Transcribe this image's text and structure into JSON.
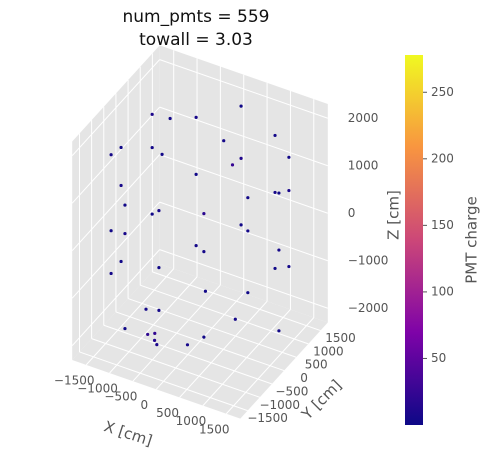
{
  "chart_data": {
    "type": "scatter3d",
    "title": "num_pmts = 559",
    "subtitle": "towall = 3.03",
    "x_label": "X [cm]",
    "y_label": "Y [cm]",
    "z_label": "Z [cm]",
    "colorbar_label": "PMT charge",
    "colormap": "plasma",
    "clim": [
      0,
      278
    ],
    "cticks": [
      50,
      100,
      150,
      200,
      250
    ],
    "xlim": [
      -1800,
      1800
    ],
    "ylim": [
      -1800,
      1800
    ],
    "zlim": [
      -2300,
      2300
    ],
    "xticks": [
      {
        "value": -1500,
        "label": "−1500"
      },
      {
        "value": -1000,
        "label": "−1000"
      },
      {
        "value": -500,
        "label": "−500"
      },
      0,
      500,
      1000,
      1500
    ],
    "yticks": [
      {
        "value": -1500,
        "label": "−1500"
      },
      {
        "value": -1000,
        "label": "−1000"
      },
      {
        "value": -500,
        "label": "−500"
      },
      0,
      500,
      1000,
      1500
    ],
    "zticks": [
      {
        "value": -2000,
        "label": "−2000"
      },
      {
        "value": -1000,
        "label": "−1000"
      },
      0,
      1000,
      2000
    ],
    "grid": true,
    "points": {
      "x": [
        1690,
        1690,
        1690,
        1464,
        1464,
        1464,
        845,
        845,
        845,
        0,
        0,
        0,
        -845,
        -845,
        -845,
        -1464,
        -1464,
        -1464,
        -1690,
        -1690,
        -1690,
        -1464,
        -1464,
        -1464,
        -845,
        -845,
        -845,
        0,
        0,
        0,
        845,
        845,
        845,
        1464,
        1464,
        1464,
        300,
        -500,
        800,
        -900,
        200,
        -300,
        600,
        -1000,
        -600,
        -400,
        -500,
        -300
      ],
      "y": [
        0,
        0,
        0,
        845,
        845,
        845,
        1464,
        1464,
        1464,
        1690,
        1690,
        1690,
        1464,
        1464,
        1464,
        845,
        845,
        845,
        0,
        0,
        0,
        -845,
        -845,
        -845,
        -1464,
        -1464,
        -1464,
        -1690,
        -1690,
        -1690,
        -1464,
        -1464,
        -1464,
        -845,
        -845,
        -845,
        400,
        -600,
        -200,
        500,
        -900,
        800,
        300,
        -300,
        -1000,
        -1100,
        -900,
        -1200
      ],
      "z": [
        -1500,
        200,
        1400,
        -700,
        900,
        1600,
        -1300,
        300,
        1500,
        -800,
        600,
        1700,
        -1400,
        100,
        1300,
        -600,
        800,
        1500,
        -1200,
        400,
        1200,
        -900,
        0,
        1600,
        -1500,
        500,
        1100,
        -700,
        200,
        1400,
        -1100,
        700,
        1500,
        -300,
        1000,
        1700,
        1800,
        1800,
        1800,
        1800,
        -1800,
        -1800,
        -1800,
        -1800,
        -1800,
        -1800,
        -1800,
        -1800
      ],
      "charge": [
        3,
        5,
        2,
        4,
        8,
        3,
        2,
        6,
        4,
        3,
        12,
        2,
        5,
        3,
        7,
        2,
        4,
        9,
        3,
        6,
        2,
        4,
        3,
        5,
        2,
        7,
        3,
        4,
        2,
        6,
        3,
        5,
        18,
        2,
        4,
        3,
        5,
        3,
        25,
        4,
        6,
        3,
        5,
        4,
        20,
        15,
        22,
        9
      ]
    }
  }
}
